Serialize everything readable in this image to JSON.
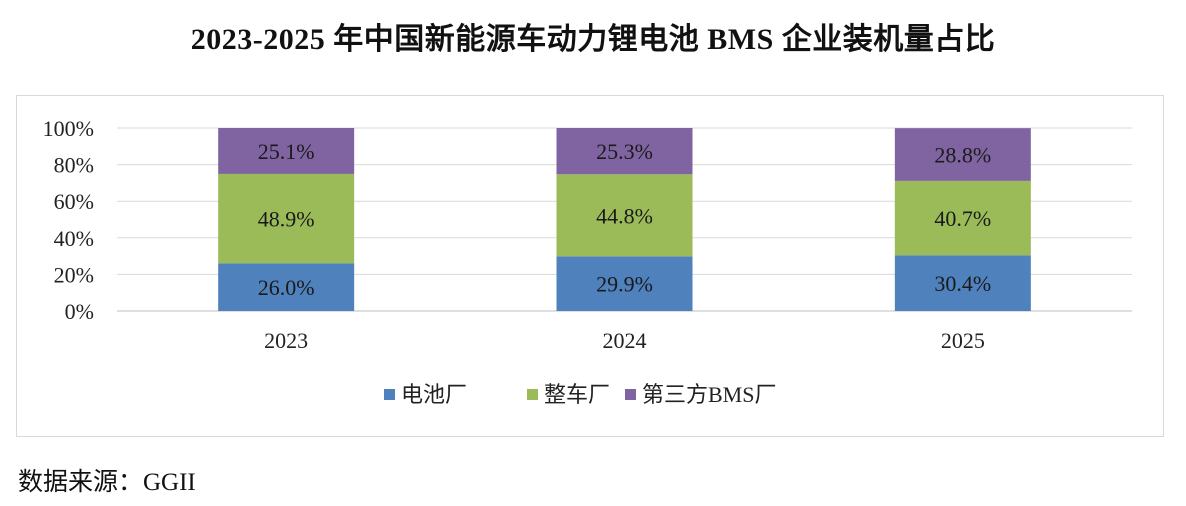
{
  "title": "2023-2025 年中国新能源车动力锂电池 BMS 企业装机量占比",
  "source": "数据来源：GGII",
  "chart_data": {
    "type": "bar",
    "stacked": true,
    "percent": true,
    "title": "2023-2025 年中国新能源车动力锂电池 BMS 企业装机量占比",
    "xlabel": "",
    "ylabel": "",
    "categories": [
      "2023",
      "2024",
      "2025"
    ],
    "ylim": [
      0,
      100
    ],
    "yticks": [
      "0%",
      "20%",
      "40%",
      "60%",
      "80%",
      "100%"
    ],
    "grid": true,
    "legend_position": "bottom",
    "series": [
      {
        "name": "电池厂",
        "values": [
          26.0,
          29.9,
          30.4
        ],
        "labels": [
          "26.0%",
          "29.9%",
          "30.4%"
        ],
        "color": "#4f81bd"
      },
      {
        "name": "整车厂",
        "values": [
          48.9,
          44.8,
          40.7
        ],
        "labels": [
          "48.9%",
          "44.8%",
          "40.7%"
        ],
        "color": "#9bbb59"
      },
      {
        "name": "第三方BMS厂",
        "values": [
          25.1,
          25.3,
          28.8
        ],
        "labels": [
          "25.1%",
          "25.3%",
          "28.8%"
        ],
        "color": "#8064a2"
      }
    ]
  }
}
